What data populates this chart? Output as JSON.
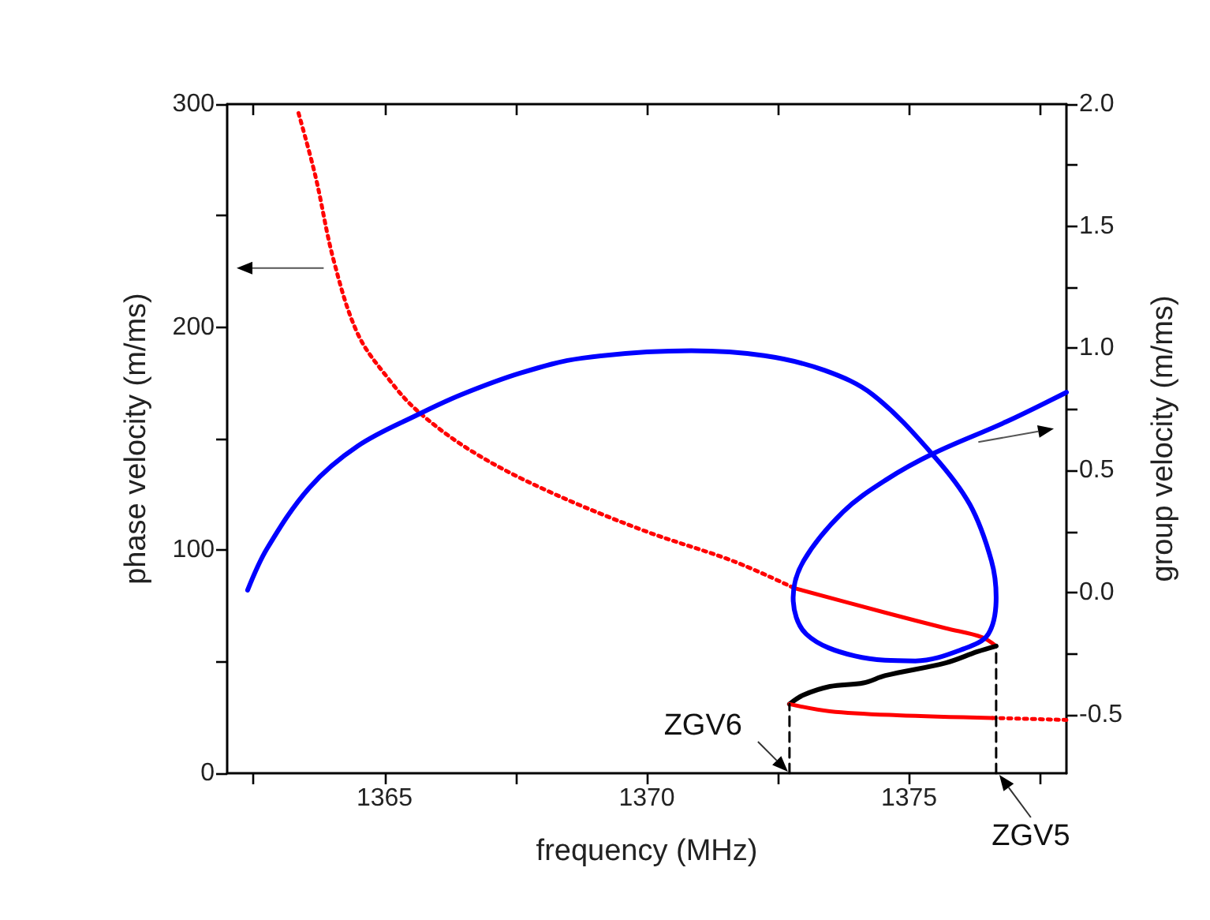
{
  "chart_data": {
    "type": "line",
    "xlabel": "frequency (MHz)",
    "ylabel": "phase velocity (m/ms)",
    "y2label": "group velocity (m/ms)",
    "xlim": [
      1362,
      1378
    ],
    "xticks": [
      {
        "value": 1362.5,
        "label": null
      },
      1365,
      {
        "value": 1367.5,
        "label": null
      },
      1370,
      {
        "value": 1372.5,
        "label": null
      },
      1375,
      {
        "value": 1377.5,
        "label": null
      }
    ],
    "ylim": [
      0,
      300
    ],
    "yticks": [
      0,
      {
        "value": 50,
        "label": null
      },
      100,
      {
        "value": 150,
        "label": null
      },
      200,
      {
        "value": 250,
        "label": null
      },
      300
    ],
    "y2lim": [
      -0.74,
      2.0
    ],
    "y2ticks": [
      {
        "value": -0.5,
        "label": "-0.5"
      },
      {
        "value": -0.25,
        "label": null
      },
      {
        "value": 0,
        "label": "0.0"
      },
      {
        "value": 0.25,
        "label": null
      },
      {
        "value": 0.5,
        "label": "0.5"
      },
      {
        "value": 0.75,
        "label": null
      },
      {
        "value": 1,
        "label": "1.0"
      },
      {
        "value": 1.25,
        "label": null
      },
      {
        "value": 1.5,
        "label": "1.5"
      },
      {
        "value": 1.75,
        "label": null
      },
      {
        "value": 2,
        "label": "2.0"
      }
    ],
    "grid": false,
    "marker": "none",
    "series": [
      {
        "color": "#ff0000",
        "line_style": "dotted",
        "x": [
          1363.36,
          1363.68,
          1364.03,
          1364.49,
          1365.07,
          1365.65,
          1366.69,
          1368.07,
          1369.92,
          1371.66,
          1372.81
        ],
        "values": [
          296,
          268,
          230,
          197,
          177,
          162,
          144,
          127,
          109,
          95,
          83
        ]
      },
      {
        "color": "#ff0000",
        "line_style": "solid",
        "x": [
          1372.81,
          1374.55,
          1375.7,
          1376.39,
          1376.66
        ],
        "values": [
          83,
          72,
          65,
          61,
          57
        ]
      },
      {
        "color": "#000000",
        "line_style": "solid",
        "x": [
          1376.66,
          1376.3,
          1375.7,
          1374.55,
          1374.13,
          1373.49,
          1372.98,
          1372.72
        ],
        "values": [
          57,
          54.5,
          49.5,
          43.8,
          40.5,
          38.9,
          35,
          31
        ]
      },
      {
        "color": "#ff0000",
        "line_style": "solid",
        "x": [
          1372.72,
          1373.49,
          1374.77,
          1376.59
        ],
        "values": [
          31,
          27.8,
          26,
          24.8
        ]
      },
      {
        "color": "#ff0000",
        "line_style": "dotted",
        "x": [
          1376.59,
          1378
        ],
        "values": [
          24.8,
          23.9
        ]
      },
      {
        "color": "#000000",
        "line_style": "dashed",
        "x": [
          1372.72,
          1372.72
        ],
        "values": [
          0,
          31
        ]
      },
      {
        "color": "#000000",
        "line_style": "dashed",
        "x": [
          1376.66,
          1376.66
        ],
        "values": [
          0,
          57
        ]
      },
      {
        "color": "#0000ff",
        "line_style": "solid",
        "axis": "y2",
        "x": [
          1362.39,
          1362.76,
          1363.57,
          1364.49,
          1365.65,
          1366.46,
          1367.61,
          1368.77,
          1370.85,
          1372.24,
          1373.39,
          1374.31,
          1375.47,
          1376.16,
          1376.57,
          1376.66,
          1376.51,
          1376.05,
          1375.12,
          1373.97,
          1373.04,
          1372.79,
          1372.99,
          1373.74,
          1374.55,
          1375.47,
          1376.86,
          1378
        ],
        "values": [
          0.01,
          0.18,
          0.43,
          0.6,
          0.73,
          0.81,
          0.9,
          0.96,
          0.99,
          0.97,
          0.91,
          0.81,
          0.56,
          0.36,
          0.13,
          -0.02,
          -0.17,
          -0.23,
          -0.28,
          -0.26,
          -0.17,
          -0.02,
          0.13,
          0.33,
          0.46,
          0.57,
          0.7,
          0.82
        ]
      }
    ],
    "annotations": [
      {
        "text": "ZGV6",
        "x": 1372.72,
        "y": 0
      },
      {
        "text": "ZGV5",
        "x": 1376.66,
        "y": 0
      }
    ]
  }
}
